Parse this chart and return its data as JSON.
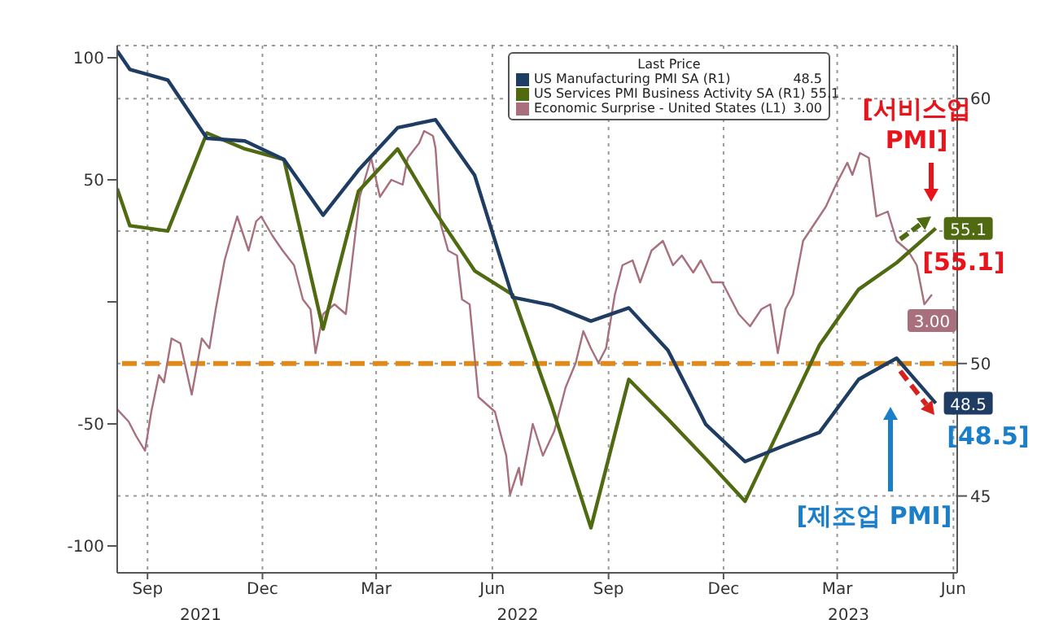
{
  "chart_data": {
    "type": "line",
    "legend_title": "Last Price",
    "xlim": [
      "2021-08-22",
      "2023-06-18"
    ],
    "xticks": [
      {
        "value": "2021-09-15",
        "label": "Sep"
      },
      {
        "value": "2021-12-15",
        "label": "Dec"
      },
      {
        "value": "2022-03-15",
        "label": "Mar"
      },
      {
        "value": "2022-06-15",
        "label": "Jun"
      },
      {
        "value": "2022-09-15",
        "label": "Sep"
      },
      {
        "value": "2022-12-15",
        "label": "Dec"
      },
      {
        "value": "2023-03-15",
        "label": "Mar"
      },
      {
        "value": "2023-06-15",
        "label": "Jun"
      }
    ],
    "x2lim": [
      "2021-08-22",
      "2023-06-18"
    ],
    "x2ticks": [
      {
        "value": "2021-10-27",
        "label": "2021"
      },
      {
        "value": "2022-07-05",
        "label": "2022"
      },
      {
        "value": "2023-03-24",
        "label": "2023"
      }
    ],
    "ylim": [
      -111,
      105
    ],
    "yticks": [
      100,
      50,
      {
        "value": 0,
        "label": null
      },
      -50,
      -100
    ],
    "y2lim": [
      42.1,
      62
    ],
    "y2ticks": [
      45,
      50,
      {
        "value": 55,
        "label": null
      },
      60
    ],
    "grid": true,
    "legend": "top right",
    "marker": "none",
    "line_style": "solid",
    "series": [
      {
        "name": "US Manufacturing PMI SA (R1)",
        "color": "#1f3d63",
        "axis": "y2",
        "x": [
          "2021-08-22",
          "2021-09-01",
          "2021-10-01",
          "2021-11-01",
          "2021-12-01",
          "2022-01-01",
          "2022-02-01",
          "2022-03-01",
          "2022-04-01",
          "2022-05-01",
          "2022-06-01",
          "2022-07-01",
          "2022-08-01",
          "2022-09-01",
          "2022-10-01",
          "2022-11-01",
          "2022-12-01",
          "2023-01-01",
          "2023-02-01",
          "2023-03-01",
          "2023-04-01",
          "2023-05-01",
          "2023-06-01"
        ],
        "values": [
          61.8,
          61.1,
          60.7,
          58.5,
          58.4,
          57.7,
          55.6,
          57.3,
          58.9,
          59.2,
          57.1,
          52.5,
          52.2,
          51.6,
          52.1,
          50.5,
          47.7,
          46.3,
          46.9,
          47.4,
          49.4,
          50.2,
          48.5
        ],
        "value_labels": [
          null,
          null,
          null,
          null,
          null,
          null,
          null,
          null,
          null,
          null,
          null,
          null,
          null,
          null,
          null,
          null,
          null,
          null,
          null,
          null,
          null,
          null,
          "48.5"
        ]
      },
      {
        "name": "US Services PMI Business Activity SA (R1)",
        "color": "#4f6a10",
        "axis": "y2",
        "x": [
          "2021-08-22",
          "2021-09-01",
          "2021-10-01",
          "2021-11-01",
          "2021-12-01",
          "2022-01-01",
          "2022-02-01",
          "2022-03-01",
          "2022-04-01",
          "2022-05-01",
          "2022-06-01",
          "2022-07-01",
          "2022-08-01",
          "2022-09-01",
          "2022-10-01",
          "2022-11-01",
          "2022-12-01",
          "2023-01-01",
          "2023-02-01",
          "2023-03-01",
          "2023-04-01",
          "2023-05-01",
          "2023-06-01"
        ],
        "values": [
          56.6,
          55.2,
          55.0,
          58.7,
          58.1,
          57.7,
          51.3,
          56.5,
          58.1,
          55.7,
          53.5,
          52.6,
          48.4,
          43.8,
          49.4,
          47.9,
          46.4,
          44.8,
          47.9,
          50.7,
          52.8,
          53.8,
          55.1
        ],
        "value_labels": [
          null,
          null,
          null,
          null,
          null,
          null,
          null,
          null,
          null,
          null,
          null,
          null,
          null,
          null,
          null,
          null,
          null,
          null,
          null,
          null,
          null,
          null,
          "55.1"
        ]
      },
      {
        "name": "Economic Surprise - United States (L1)",
        "color": "#a8707c",
        "x": [
          "2021-08-22",
          "2021-08-31",
          "2021-09-06",
          "2021-09-13",
          "2021-09-18",
          "2021-09-24",
          "2021-09-28",
          "2021-10-04",
          "2021-10-11",
          "2021-10-20",
          "2021-10-28",
          "2021-11-03",
          "2021-11-08",
          "2021-11-15",
          "2021-11-21",
          "2021-11-25",
          "2021-12-04",
          "2021-12-10",
          "2021-12-14",
          "2021-12-23",
          "2021-12-31",
          "2022-01-09",
          "2022-01-16",
          "2022-01-22",
          "2022-01-26",
          "2022-02-01",
          "2022-02-10",
          "2022-02-19",
          "2022-03-02",
          "2022-03-11",
          "2022-03-18",
          "2022-03-27",
          "2022-04-05",
          "2022-04-09",
          "2022-04-18",
          "2022-04-22",
          "2022-04-29",
          "2022-05-01",
          "2022-05-05",
          "2022-05-11",
          "2022-05-18",
          "2022-05-22",
          "2022-05-28",
          "2022-06-04",
          "2022-06-17",
          "2022-06-26",
          "2022-06-29",
          "2022-07-06",
          "2022-07-08",
          "2022-07-17",
          "2022-07-25",
          "2022-08-03",
          "2022-08-12",
          "2022-08-20",
          "2022-08-26",
          "2022-09-01",
          "2022-09-07",
          "2022-09-13",
          "2022-09-20",
          "2022-09-26",
          "2022-10-04",
          "2022-10-10",
          "2022-10-19",
          "2022-10-28",
          "2022-11-05",
          "2022-11-12",
          "2022-11-21",
          "2022-11-27",
          "2022-12-06",
          "2022-12-14",
          "2022-12-23",
          "2022-12-27",
          "2023-01-05",
          "2023-01-14",
          "2023-01-21",
          "2023-01-27",
          "2023-02-02",
          "2023-02-08",
          "2023-02-16",
          "2023-02-25",
          "2023-03-06",
          "2023-03-14",
          "2023-03-23",
          "2023-03-27",
          "2023-04-02",
          "2023-04-09",
          "2023-04-15",
          "2023-04-24",
          "2023-05-01",
          "2023-05-10",
          "2023-05-17",
          "2023-05-23",
          "2023-05-29"
        ],
        "values": [
          -44,
          -49,
          -55,
          -61,
          -45,
          -30,
          -33,
          -15,
          -17,
          -38,
          -15,
          -19,
          -3,
          17,
          28,
          35,
          21,
          33,
          35,
          27,
          21,
          15,
          1,
          -3,
          -21,
          -5,
          -1,
          -5,
          43,
          59,
          43,
          50,
          48,
          59,
          65,
          70,
          68,
          63,
          32,
          21,
          19,
          1,
          -1,
          -39,
          -45,
          -63,
          -79,
          -68,
          -75,
          -50,
          -63,
          -53,
          -35,
          -25,
          -12,
          -19,
          -25,
          -19,
          3,
          15,
          17,
          8,
          21,
          25,
          15,
          19,
          12,
          17,
          8,
          8,
          -1,
          -5,
          -10,
          -3,
          -1,
          -21,
          -3,
          3,
          25,
          32,
          39,
          48,
          57,
          52,
          61,
          59,
          35,
          37,
          25,
          21,
          15,
          -1,
          3
        ],
        "value_labels": [
          null,
          null,
          null,
          null,
          null,
          null,
          null,
          null,
          null,
          null,
          null,
          null,
          null,
          null,
          null,
          null,
          null,
          null,
          null,
          null,
          null,
          null,
          null,
          null,
          null,
          null,
          null,
          null,
          null,
          null,
          null,
          null,
          null,
          null,
          null,
          null,
          null,
          null,
          null,
          null,
          null,
          null,
          null,
          null,
          null,
          null,
          null,
          null,
          null,
          null,
          null,
          null,
          null,
          null,
          null,
          null,
          null,
          null,
          null,
          null,
          null,
          null,
          null,
          null,
          null,
          null,
          null,
          null,
          null,
          null,
          null,
          null,
          null,
          null,
          null,
          null,
          null,
          null,
          null,
          null,
          null,
          null,
          null,
          null,
          null,
          null,
          null,
          null,
          null,
          null,
          null,
          null,
          "3.00"
        ]
      }
    ],
    "ref_lines": [
      {
        "axis": "y2",
        "value": 50,
        "color": "#e08a1c",
        "line_style": "dashed"
      }
    ],
    "annotations": [
      "[서비스업 PMI]",
      "[55.1]",
      "[제조업 PMI]",
      "[48.5]"
    ]
  }
}
